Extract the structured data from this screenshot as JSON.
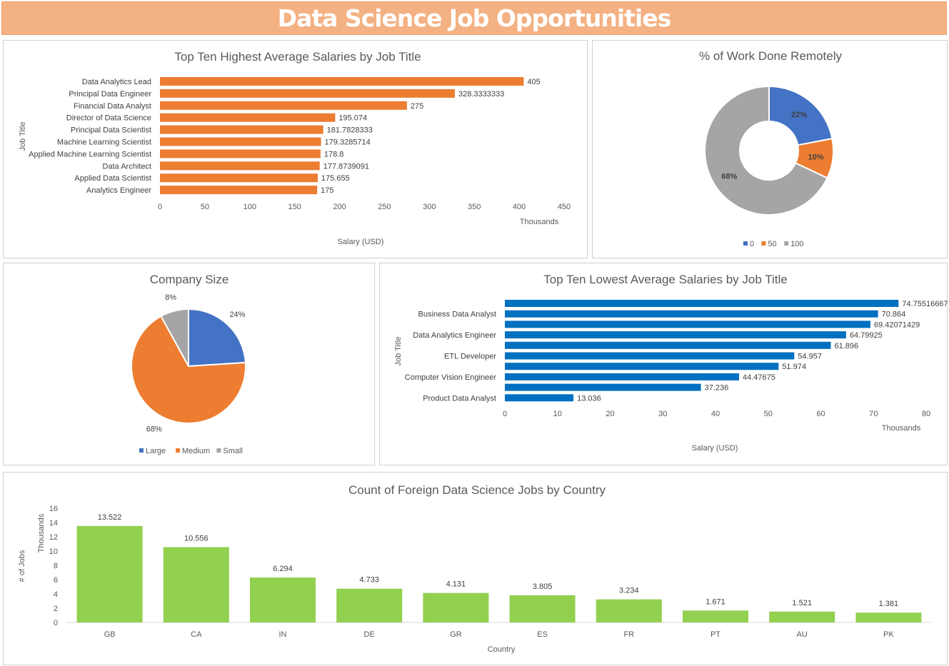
{
  "header": {
    "title": "Data Science Job Opportunities"
  },
  "colors": {
    "orange": "#ed7d31",
    "blue": "#4472c4",
    "gray": "#a5a5a5",
    "darkblue": "#0070c0",
    "green": "#92d050",
    "banner": "#f4b183"
  },
  "chart_data": [
    {
      "id": "highest",
      "type": "bar",
      "orientation": "horizontal",
      "title": "Top Ten Highest Average Salaries by Job Title",
      "xlabel": "Salary (USD)",
      "ylabel": "Job Title",
      "unit_label": "Thousands",
      "xlim": [
        0,
        450
      ],
      "xticks": [
        "0",
        "50",
        "100",
        "150",
        "200",
        "250",
        "300",
        "350",
        "400",
        "450"
      ],
      "categories": [
        "Data Analytics Lead",
        "Principal Data Engineer",
        "Financial Data Analyst",
        "Director of Data Science",
        "Principal Data Scientist",
        "Machine Learning Scientist",
        "Applied Machine Learning Scientist",
        "Data Architect",
        "Applied Data Scientist",
        "Analytics Engineer"
      ],
      "values": [
        405,
        328.3333333,
        275,
        195.074,
        181.7828333,
        179.3285714,
        178.8,
        177.8739091,
        175.655,
        175
      ],
      "value_labels": [
        "405",
        "328.3333333",
        "275",
        "195.074",
        "181.7828333",
        "179.3285714",
        "178.8",
        "177.8739091",
        "175.655",
        "175"
      ],
      "color": "#ed7d31"
    },
    {
      "id": "remote",
      "type": "pie",
      "donut": true,
      "title": "% of Work Done Remotely",
      "labels": [
        "0",
        "50",
        "100"
      ],
      "values": [
        22,
        10,
        68
      ],
      "value_labels": [
        "22%",
        "10%",
        "68%"
      ],
      "colors": [
        "#4472c4",
        "#ed7d31",
        "#a5a5a5"
      ],
      "legend": "bottom"
    },
    {
      "id": "size",
      "type": "pie",
      "title": "Company Size",
      "labels": [
        "Large",
        "Medium",
        "Small"
      ],
      "values": [
        24,
        68,
        8
      ],
      "value_labels": [
        "24%",
        "68%",
        "8%"
      ],
      "colors": [
        "#4472c4",
        "#ed7d31",
        "#a5a5a5"
      ],
      "legend": "bottom"
    },
    {
      "id": "lowest",
      "type": "bar",
      "orientation": "horizontal",
      "title": "Top Ten Lowest Average Salaries by Job Title",
      "xlabel": "Salary (USD)",
      "ylabel": "Job Title",
      "unit_label": "Thousands",
      "xlim": [
        0,
        80
      ],
      "xticks": [
        "0",
        "10",
        "20",
        "30",
        "40",
        "50",
        "60",
        "70",
        "80"
      ],
      "categories": [
        "",
        "Business Data Analyst",
        "",
        "Data Analytics Engineer",
        "",
        "ETL Developer",
        "",
        "Computer Vision Engineer",
        "",
        "Product Data Analyst"
      ],
      "values": [
        74.75516667,
        70.864,
        69.42071429,
        64.79925,
        61.896,
        54.957,
        51.974,
        44.47675,
        37.236,
        13.036
      ],
      "value_labels": [
        "74.75516667",
        "70.864",
        "69.42071429",
        "64.79925",
        "61.896",
        "54.957",
        "51.974",
        "44.47675",
        "37.236",
        "13.036"
      ],
      "color": "#0070c0"
    },
    {
      "id": "country",
      "type": "bar",
      "title": "Count of Foreign Data Science Jobs by Country",
      "xlabel": "Country",
      "ylabel": "# of Jobs",
      "unit_label": "Thousands",
      "ylim": [
        0,
        16
      ],
      "yticks": [
        "0",
        "2",
        "4",
        "6",
        "8",
        "10",
        "12",
        "14",
        "16"
      ],
      "categories": [
        "GB",
        "CA",
        "IN",
        "DE",
        "GR",
        "ES",
        "FR",
        "PT",
        "AU",
        "PK"
      ],
      "values": [
        13.522,
        10.556,
        6.294,
        4.733,
        4.131,
        3.805,
        3.234,
        1.671,
        1.521,
        1.381
      ],
      "value_labels": [
        "13.522",
        "10.556",
        "6.294",
        "4.733",
        "4.131",
        "3.805",
        "3.234",
        "1.671",
        "1.521",
        "1.381"
      ],
      "color": "#92d050"
    }
  ]
}
